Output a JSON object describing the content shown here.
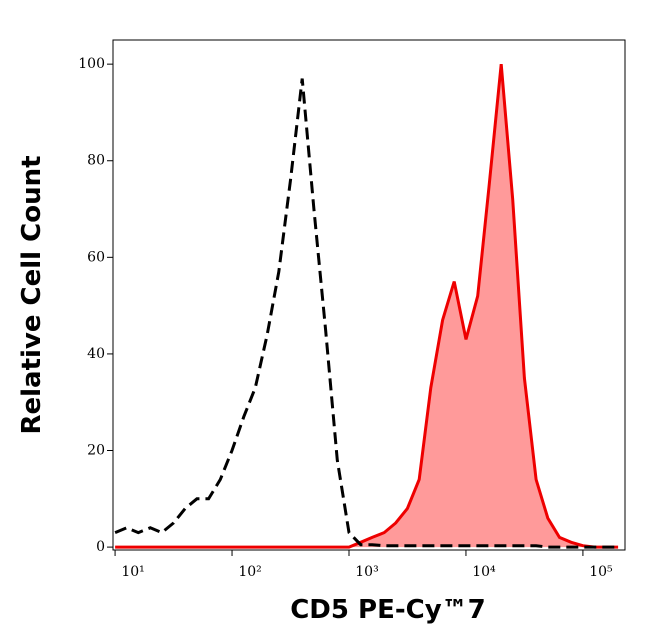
{
  "chart_data": {
    "type": "histogram-overlay",
    "x_label": "CD5 PE-Cy™7",
    "y_label": "Relative Cell Count",
    "x_scale": "log",
    "xlim": [
      9.6,
      229000
    ],
    "ylim": [
      -0.6,
      105
    ],
    "xticks": [
      {
        "value": 10,
        "label": "10¹"
      },
      {
        "value": 100,
        "label": "10²"
      },
      {
        "value": 1000,
        "label": "10³"
      },
      {
        "value": 10000,
        "label": "10⁴"
      },
      {
        "value": 100000,
        "label": "10⁵"
      }
    ],
    "yticks": [
      0,
      20,
      40,
      60,
      80,
      100
    ],
    "x": [
      10,
      12.6,
      15.8,
      20,
      25.1,
      31.6,
      39.8,
      50.1,
      63.1,
      79.4,
      100,
      126,
      158,
      200,
      251,
      316,
      398,
      501,
      631,
      794,
      1000,
      1260,
      1580,
      2000,
      2510,
      3160,
      3980,
      5010,
      6310,
      7940,
      10000,
      12600,
      15800,
      20000,
      25100,
      31600,
      39800,
      50100,
      63100,
      79400,
      100000,
      126000,
      158000,
      200000
    ],
    "series": [
      {
        "color": "#ee0000",
        "fill": "#ff9a9a",
        "style": "solid",
        "values": [
          0,
          0,
          0,
          0,
          0,
          0,
          0,
          0,
          0,
          0,
          0,
          0,
          0,
          0,
          0,
          0,
          0,
          0,
          0,
          0,
          0,
          1,
          2,
          3,
          5,
          8,
          14,
          33,
          47,
          55,
          43,
          52,
          75,
          100,
          72,
          35,
          14,
          6,
          2,
          1,
          0.3,
          0,
          0,
          0
        ]
      },
      {
        "color": "#000000",
        "style": "dashed",
        "values": [
          3,
          4,
          3,
          4,
          3,
          5,
          8,
          10,
          10,
          14,
          20,
          27,
          33,
          44,
          57,
          76,
          97,
          70,
          45,
          18,
          3,
          0.5,
          0.5,
          0.3,
          0.3,
          0.3,
          0.3,
          0.3,
          0.3,
          0.3,
          0.3,
          0.3,
          0.3,
          0.3,
          0.3,
          0.3,
          0.3,
          0,
          0,
          0,
          0,
          0,
          0,
          0
        ]
      }
    ]
  }
}
